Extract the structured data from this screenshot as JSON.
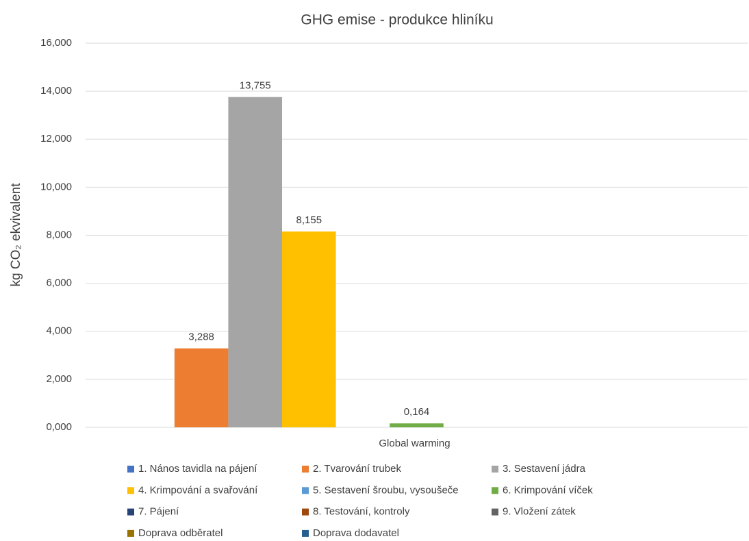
{
  "chart_data": {
    "type": "bar",
    "title": "GHG emise - produkce hliníku",
    "ylabel": "kg CO₂ ekvivalent",
    "categories": [
      "Global warming"
    ],
    "ylim": [
      0,
      16
    ],
    "yticks": [
      {
        "value": 0,
        "label": "0,000"
      },
      {
        "value": 2,
        "label": "2,000"
      },
      {
        "value": 4,
        "label": "4,000"
      },
      {
        "value": 6,
        "label": "6,000"
      },
      {
        "value": 8,
        "label": "8,000"
      },
      {
        "value": 10,
        "label": "10,000"
      },
      {
        "value": 12,
        "label": "12,000"
      },
      {
        "value": 14,
        "label": "14,000"
      },
      {
        "value": 16,
        "label": "16,000"
      }
    ],
    "grid": true,
    "series": [
      {
        "name": "1. Nános tavidla na pájení",
        "color": "#4472c4",
        "values": [
          0
        ]
      },
      {
        "name": "2. Tvarování trubek",
        "color": "#ed7d31",
        "values": [
          3.288
        ],
        "value_labels": [
          "3,288"
        ]
      },
      {
        "name": "3. Sestavení jádra",
        "color": "#a5a5a5",
        "values": [
          13.755
        ],
        "value_labels": [
          "13,755"
        ]
      },
      {
        "name": "4. Krimpování a svařování",
        "color": "#ffc000",
        "values": [
          8.155
        ],
        "value_labels": [
          "8,155"
        ]
      },
      {
        "name": "5. Sestavení šroubu, vysoušeče",
        "color": "#5b9bd5",
        "values": [
          0
        ]
      },
      {
        "name": "6. Krimpování víček",
        "color": "#70ad47",
        "values": [
          0.164
        ],
        "value_labels": [
          "0,164"
        ]
      },
      {
        "name": "7. Pájení",
        "color": "#264478",
        "values": [
          0
        ]
      },
      {
        "name": "8. Testování, kontroly",
        "color": "#9e480e",
        "values": [
          0
        ]
      },
      {
        "name": "9. Vložení zátek",
        "color": "#636363",
        "values": [
          0
        ]
      },
      {
        "name": "Doprava odběratel",
        "color": "#997300",
        "values": [
          0
        ]
      },
      {
        "name": "Doprava dodavatel",
        "color": "#255e91",
        "values": [
          0
        ]
      }
    ]
  }
}
